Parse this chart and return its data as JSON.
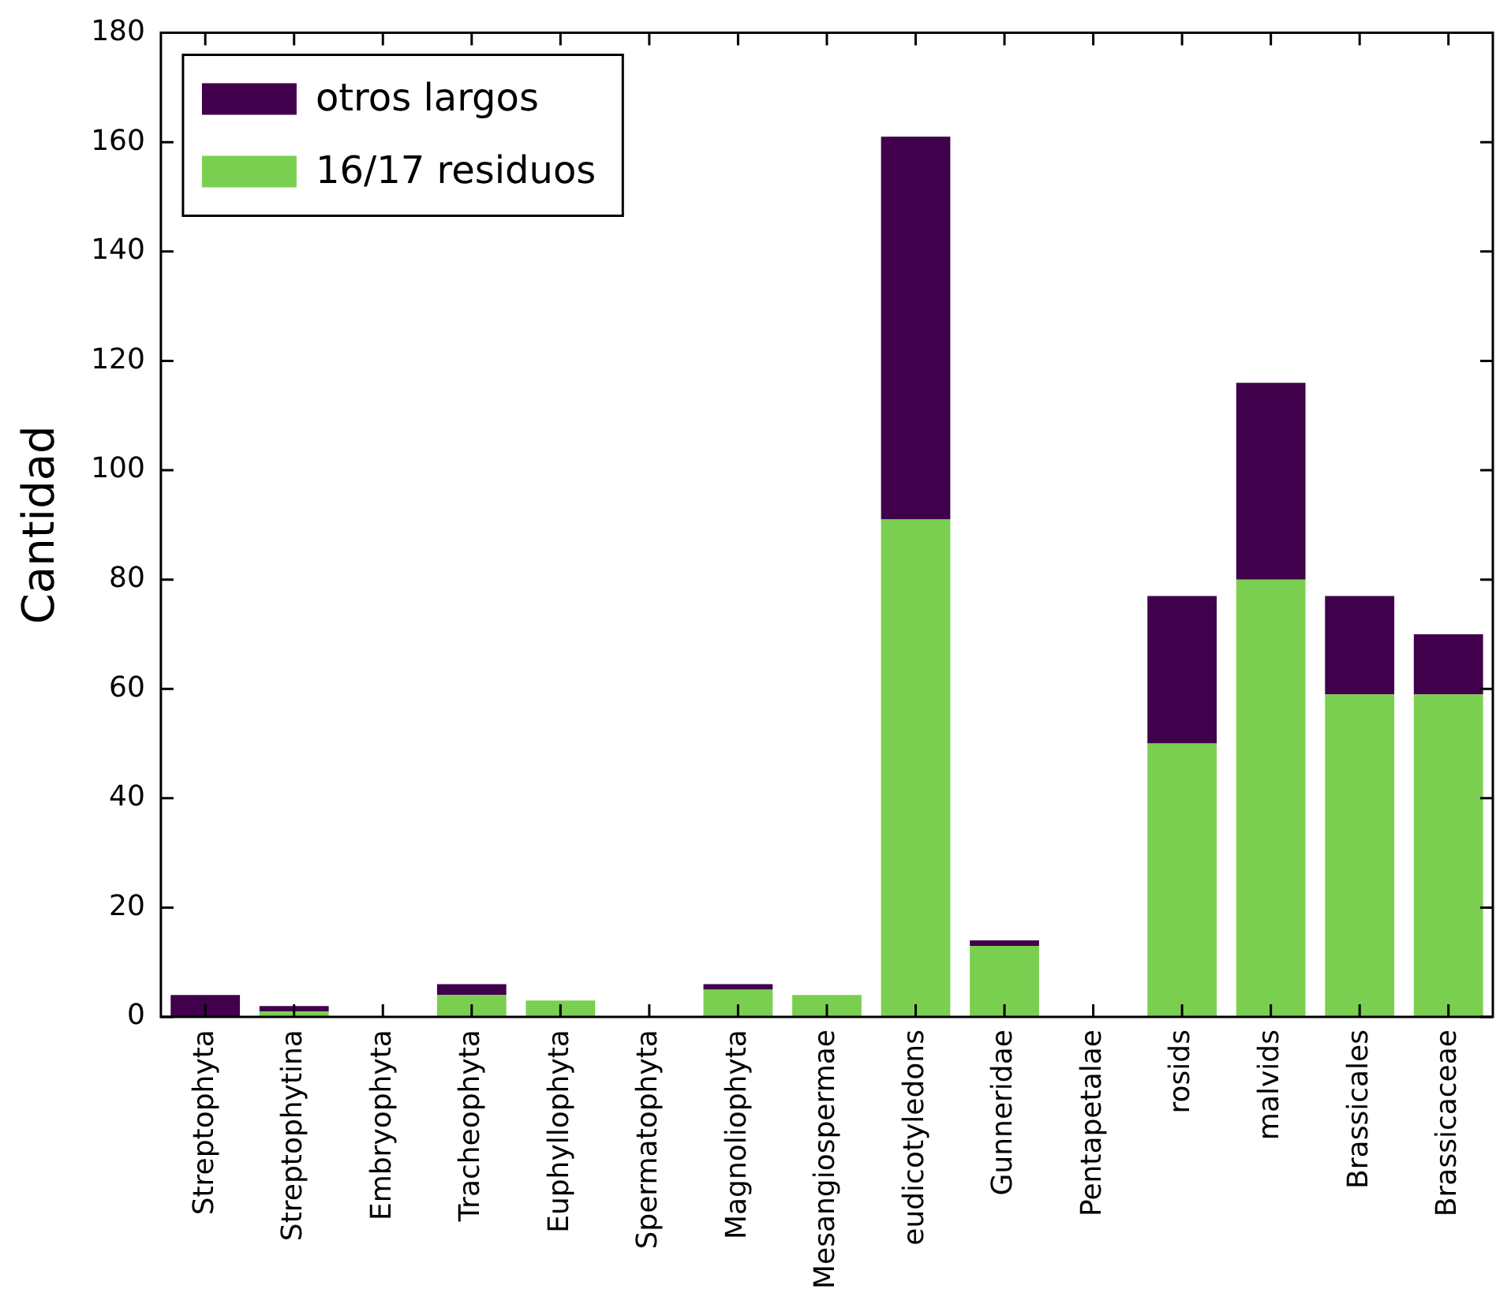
{
  "chart_data": {
    "type": "bar",
    "stacked": true,
    "ylabel": "Cantidad",
    "categories": [
      "Streptophyta",
      "Streptophytina",
      "Embryophyta",
      "Tracheophyta",
      "Euphyllophyta",
      "Spermatophyta",
      "Magnoliophyta",
      "Mesangiospermae",
      "eudicotyledons",
      "Gunneridae",
      "Pentapetalae",
      "rosids",
      "malvids",
      "Brassicales",
      "Brassicaceae"
    ],
    "series": [
      {
        "name": "16/17 residuos",
        "color": "#7acf50",
        "values": [
          0,
          1,
          0,
          4,
          3,
          0,
          5,
          4,
          91,
          13,
          0,
          50,
          80,
          59,
          59
        ]
      },
      {
        "name": "otros largos",
        "color": "#40004b",
        "values": [
          4,
          1,
          0,
          2,
          0,
          0,
          1,
          0,
          70,
          1,
          0,
          27,
          36,
          18,
          11
        ]
      }
    ],
    "ylim": [
      0,
      180
    ],
    "yticks": [
      0,
      20,
      40,
      60,
      80,
      100,
      120,
      140,
      160,
      180
    ],
    "grid": false,
    "legend": "top left"
  }
}
